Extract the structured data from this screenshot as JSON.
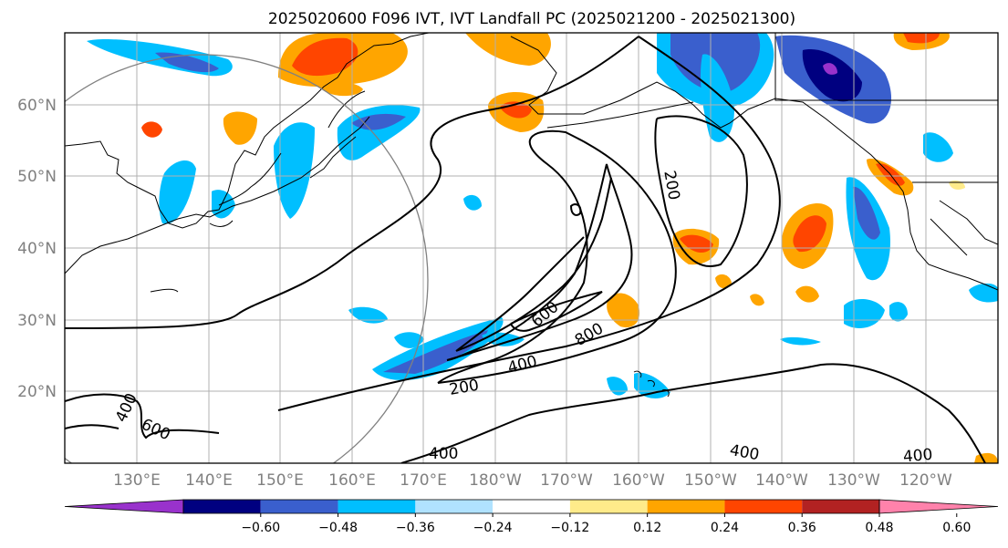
{
  "title": "2025020600 F096 IVT, IVT Landfall PC (2025021200 - 2025021300)",
  "map": {
    "lat_labels": [
      "60°N",
      "50°N",
      "40°N",
      "30°N",
      "20°N"
    ],
    "lon_labels": [
      "130°E",
      "140°E",
      "150°E",
      "160°E",
      "170°E",
      "180°W",
      "170°W",
      "160°W",
      "150°W",
      "140°W",
      "130°W",
      "120°W"
    ],
    "contour_labels": [
      "200",
      "600",
      "800",
      "400",
      "200",
      "400",
      "600",
      "400",
      "400",
      "400"
    ],
    "colors": {
      "grid": "#b0b0b0",
      "land_outline": "#000000",
      "contour": "#000000",
      "ring": "#808080"
    },
    "shaded_patches": [
      {
        "color": "#ffeb8a"
      },
      {
        "color": "#ffa500"
      },
      {
        "color": "#ff4500"
      },
      {
        "color": "#bfe6ff"
      },
      {
        "color": "#00bfff"
      },
      {
        "color": "#3a5fcd"
      },
      {
        "color": "#000080"
      },
      {
        "color": "#9932cc"
      }
    ]
  },
  "colorbar": {
    "ticks": [
      "−0.60",
      "−0.48",
      "−0.36",
      "−0.24",
      "−0.12",
      "0.12",
      "0.24",
      "0.36",
      "0.48",
      "0.60"
    ],
    "colors": [
      "#9932cc",
      "#000080",
      "#3a5fcd",
      "#00bfff",
      "#b0e2ff",
      "#ffffff",
      "#ffeb8a",
      "#ffa500",
      "#ff4500",
      "#b22222",
      "#ff82ab"
    ]
  }
}
